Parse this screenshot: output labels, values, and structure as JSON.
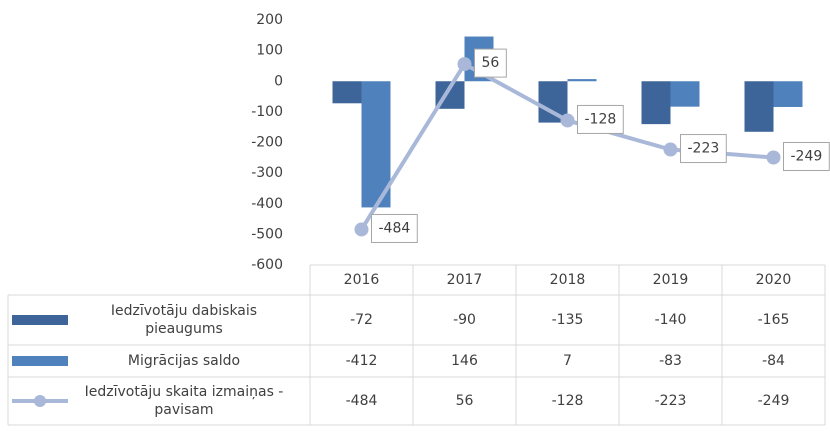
{
  "chart_data": {
    "type": "bar",
    "categories": [
      "2016",
      "2017",
      "2018",
      "2019",
      "2020"
    ],
    "series": [
      {
        "name": "Iedzīvotāju dabiskais pieaugums",
        "type": "bar",
        "color": "#3e6599",
        "values": [
          -72,
          -90,
          -135,
          -140,
          -165
        ]
      },
      {
        "name": "Migrācijas saldo",
        "type": "bar",
        "color": "#4f81bd",
        "values": [
          -412,
          146,
          7,
          -83,
          -84
        ]
      },
      {
        "name": "Iedzīvotāju skaita izmaiņas - pavisam",
        "type": "line",
        "color": "#a9b8d9",
        "values": [
          -484,
          56,
          -128,
          -223,
          -249
        ]
      }
    ],
    "ylim": [
      -600,
      200
    ],
    "yticks": [
      -600,
      -500,
      -400,
      -300,
      -200,
      -100,
      0,
      100,
      200
    ],
    "grid": false,
    "data_table": true
  }
}
